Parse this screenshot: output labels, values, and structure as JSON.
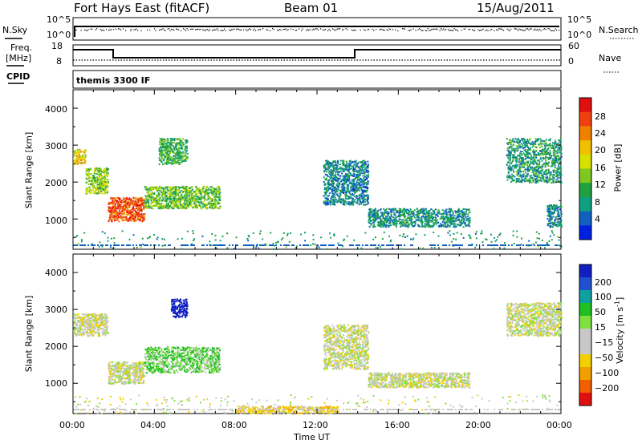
{
  "header": {
    "station": "Fort Hays East (fitACF)",
    "beam": "Beam 01",
    "date": "15/Aug/2011"
  },
  "top_panel": {
    "left_label": "N.Sky",
    "right_label": "N.Search",
    "left_ticks": [
      "10^5",
      "10^0"
    ],
    "right_ticks": [
      "10^5",
      "10^0"
    ]
  },
  "freq_panel": {
    "left_label_1": "Freq.",
    "left_label_2": "[MHz]",
    "left_ticks": [
      "18",
      "8"
    ],
    "right_label": "Nave",
    "right_ticks": [
      "60",
      "0"
    ]
  },
  "cpid_panel": {
    "label": "CPID",
    "text": "themis 3300 IF"
  },
  "chart_data": [
    {
      "type": "heatmap",
      "panel": "power",
      "ylabel": "Slant Range [km]",
      "ylim": [
        180,
        4500
      ],
      "yticks": [
        "1000",
        "2000",
        "3000",
        "4000"
      ],
      "xlim": [
        "00:00",
        "24:00"
      ],
      "colorbar": {
        "label": "Power [dB]",
        "ticks": [
          "28",
          "24",
          "20",
          "16",
          "12",
          "8",
          "4"
        ],
        "colors": [
          "#e01010",
          "#f04010",
          "#f08000",
          "#f0c000",
          "#d8e000",
          "#80c820",
          "#20a040",
          "#10a080",
          "#1060c0",
          "#0020e0"
        ]
      },
      "echo_regions": [
        {
          "t_start": 0.0,
          "t_end": 0.6,
          "r_start": 2500,
          "r_end": 2900,
          "power": 18
        },
        {
          "t_start": 0.6,
          "t_end": 1.7,
          "r_start": 1700,
          "r_end": 2400,
          "power": 14
        },
        {
          "t_start": 1.7,
          "t_end": 3.5,
          "r_start": 950,
          "r_end": 1600,
          "power": 26
        },
        {
          "t_start": 3.5,
          "t_end": 7.2,
          "r_start": 1300,
          "r_end": 1900,
          "power": 12
        },
        {
          "t_start": 4.2,
          "t_end": 5.6,
          "r_start": 2500,
          "r_end": 3200,
          "power": 10
        },
        {
          "t_start": 12.3,
          "t_end": 14.5,
          "r_start": 1400,
          "r_end": 2600,
          "power": 6
        },
        {
          "t_start": 14.5,
          "t_end": 19.5,
          "r_start": 800,
          "r_end": 1300,
          "power": 7
        },
        {
          "t_start": 21.3,
          "t_end": 24.0,
          "r_start": 2000,
          "r_end": 3200,
          "power": 8
        },
        {
          "t_start": 23.3,
          "t_end": 24.0,
          "r_start": 800,
          "r_end": 1400,
          "power": 6
        }
      ]
    },
    {
      "type": "heatmap",
      "panel": "velocity",
      "ylabel": "Slant Range [km]",
      "ylim": [
        180,
        4500
      ],
      "yticks": [
        "1000",
        "2000",
        "3000",
        "4000"
      ],
      "xlim": [
        "00:00",
        "24:00"
      ],
      "xticks": [
        "00:00",
        "04:00",
        "08:00",
        "12:00",
        "16:00",
        "20:00",
        "00:00"
      ],
      "xlabel": "Time UT",
      "colorbar": {
        "label": "Velocity [m s",
        "label_exp": "-1",
        "label_end": "]",
        "ticks": [
          "200",
          "100",
          "50",
          "15",
          "−15",
          "−50",
          "−100",
          "−200"
        ],
        "colors": [
          "#1020c0",
          "#2050d0",
          "#10a0a0",
          "#20c020",
          "#80e040",
          "#c8c8c8",
          "#c8c8c8",
          "#f0d000",
          "#f0a000",
          "#f06000",
          "#e01010"
        ]
      },
      "echo_regions": [
        {
          "t_start": 0.0,
          "t_end": 1.7,
          "r_start": 2300,
          "r_end": 2900,
          "velocity": 0
        },
        {
          "t_start": 1.7,
          "t_end": 3.5,
          "r_start": 1000,
          "r_end": 1600,
          "velocity": 0
        },
        {
          "t_start": 3.5,
          "t_end": 7.2,
          "r_start": 1300,
          "r_end": 2000,
          "velocity": 30
        },
        {
          "t_start": 4.8,
          "t_end": 5.6,
          "r_start": 2800,
          "r_end": 3300,
          "velocity": 200
        },
        {
          "t_start": 12.3,
          "t_end": 14.5,
          "r_start": 1400,
          "r_end": 2600,
          "velocity": 0
        },
        {
          "t_start": 14.5,
          "t_end": 19.5,
          "r_start": 900,
          "r_end": 1300,
          "velocity": 0
        },
        {
          "t_start": 21.3,
          "t_end": 24.0,
          "r_start": 2300,
          "r_end": 3200,
          "velocity": 0
        },
        {
          "t_start": 8.0,
          "t_end": 13.0,
          "r_start": 200,
          "r_end": 400,
          "velocity": -30
        }
      ]
    }
  ]
}
